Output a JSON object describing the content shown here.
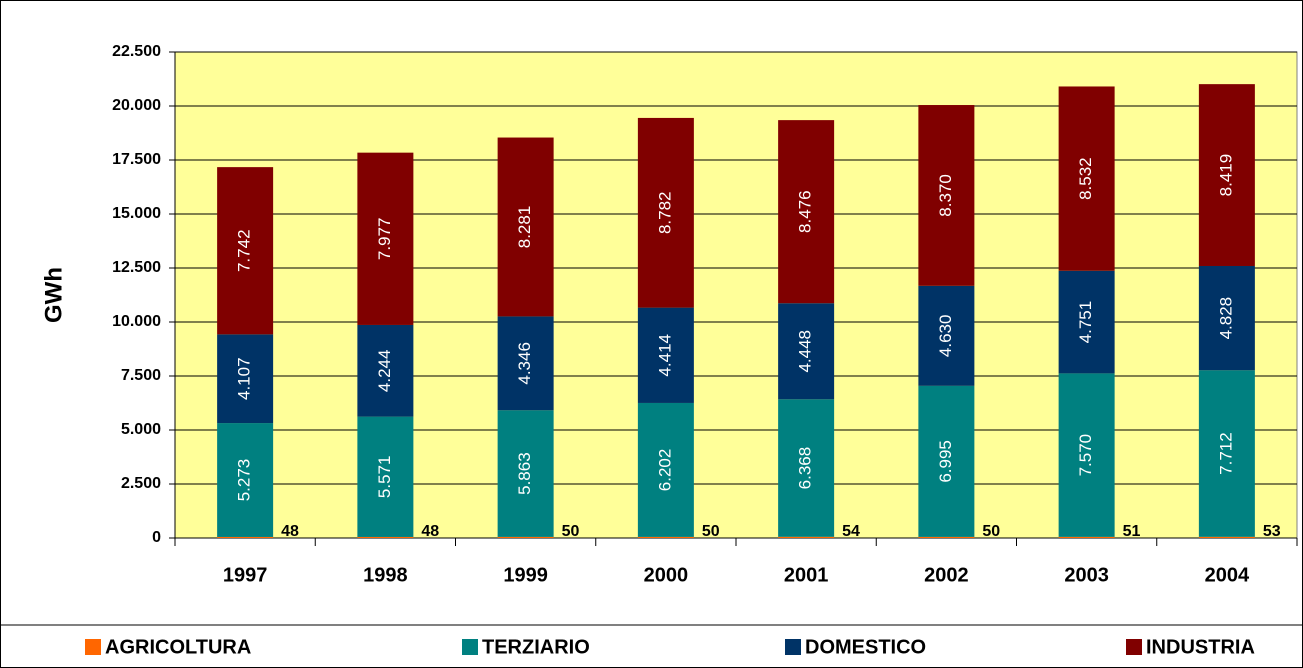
{
  "chart_data": {
    "type": "stacked_bar",
    "y_label": "GWh",
    "categories": [
      "1997",
      "1998",
      "1999",
      "2000",
      "2001",
      "2002",
      "2003",
      "2004"
    ],
    "series": [
      {
        "name": "AGRICOLTURA",
        "color": "#ff6600",
        "values": [
          48,
          48,
          50,
          50,
          54,
          50,
          51,
          53
        ]
      },
      {
        "name": "TERZIARIO",
        "color": "#008080",
        "values": [
          5273,
          5571,
          5863,
          6202,
          6368,
          6995,
          7570,
          7712
        ],
        "value_labels": [
          "5.273",
          "5.571",
          "5.863",
          "6.202",
          "6.368",
          "6.995",
          "7.570",
          "7.712"
        ]
      },
      {
        "name": "DOMESTICO",
        "color": "#003366",
        "values": [
          4107,
          4244,
          4346,
          4414,
          4448,
          4630,
          4751,
          4828
        ],
        "value_labels": [
          "4.107",
          "4.244",
          "4.346",
          "4.414",
          "4.448",
          "4.630",
          "4.751",
          "4.828"
        ]
      },
      {
        "name": "INDUSTRIA",
        "color": "#800000",
        "values": [
          7742,
          7977,
          8281,
          8782,
          8476,
          8370,
          8532,
          8419
        ],
        "value_labels": [
          "7.742",
          "7.977",
          "8.281",
          "8.782",
          "8.476",
          "8.370",
          "8.532",
          "8.419"
        ]
      }
    ],
    "ylim": [
      0,
      22500
    ],
    "yticks": [
      0,
      {
        "value": 2500,
        "label": "2.500"
      },
      {
        "value": 5000,
        "label": "5.000"
      },
      {
        "value": 7500,
        "label": "7.500"
      },
      {
        "value": 10000,
        "label": "10.000"
      },
      {
        "value": 12500,
        "label": "12.500"
      },
      {
        "value": 15000,
        "label": "15.000"
      },
      {
        "value": 17500,
        "label": "17.500"
      },
      {
        "value": 20000,
        "label": "20.000"
      },
      {
        "value": 22500,
        "label": "22.500"
      }
    ],
    "grid": true,
    "plot_background": "#ffff99",
    "legend": "bottom"
  }
}
